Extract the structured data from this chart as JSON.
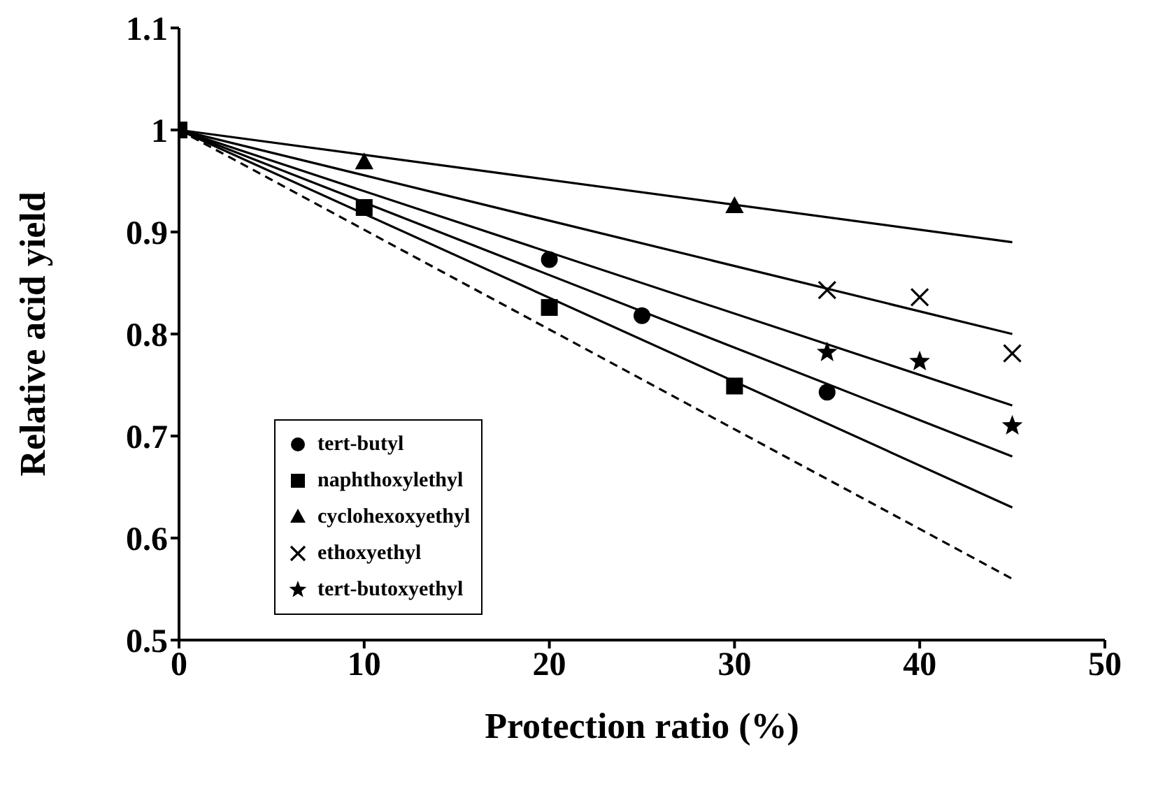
{
  "chart_data": {
    "type": "scatter",
    "xlabel": "Protection ratio (%)",
    "ylabel": "Relative acid yield",
    "xlim": [
      0,
      50
    ],
    "xticks": [
      0,
      10,
      20,
      30,
      40,
      50
    ],
    "ylim": [
      0.5,
      1.1
    ],
    "yticks": [
      0.5,
      0.6,
      0.7,
      0.8,
      0.9,
      1,
      1.1
    ],
    "grid": false,
    "legend": "bottom left",
    "series": [
      {
        "name": "tert-butyl",
        "type": "scatter",
        "marker": "circle",
        "color": "#000000",
        "x": [
          20,
          25,
          35
        ],
        "values": [
          0.873,
          0.818,
          0.743
        ]
      },
      {
        "name": "naphthoxylethyl",
        "type": "scatter",
        "marker": "square",
        "color": "#000000",
        "x": [
          0,
          10,
          20,
          30
        ],
        "values": [
          1,
          0.924,
          0.826,
          0.749
        ]
      },
      {
        "name": "cyclohexoxyethyl",
        "type": "scatter",
        "marker": "triangle",
        "color": "#000000",
        "x": [
          10,
          30
        ],
        "values": [
          0.968,
          0.925
        ]
      },
      {
        "name": "ethoxyethyl",
        "type": "scatter",
        "marker": "cross",
        "color": "#000000",
        "x": [
          35,
          40,
          45
        ],
        "values": [
          0.843,
          0.836,
          0.781
        ]
      },
      {
        "name": "tert-butoxyethyl",
        "type": "scatter",
        "marker": "star",
        "color": "#000000",
        "x": [
          35,
          40,
          45
        ],
        "values": [
          0.782,
          0.773,
          0.71
        ]
      },
      {
        "type": "line",
        "color": "#000000",
        "line_style": "solid",
        "x": [
          0,
          45
        ],
        "values": [
          1,
          0.89
        ]
      },
      {
        "type": "line",
        "color": "#000000",
        "line_style": "solid",
        "x": [
          0,
          45
        ],
        "values": [
          1,
          0.8
        ]
      },
      {
        "type": "line",
        "color": "#000000",
        "line_style": "solid",
        "x": [
          0,
          45
        ],
        "values": [
          1,
          0.73
        ]
      },
      {
        "type": "line",
        "color": "#000000",
        "line_style": "solid",
        "x": [
          0,
          45
        ],
        "values": [
          1,
          0.68
        ]
      },
      {
        "type": "line",
        "color": "#000000",
        "line_style": "solid",
        "x": [
          0,
          45
        ],
        "values": [
          1,
          0.63
        ]
      },
      {
        "type": "line",
        "color": "#000000",
        "line_style": "dashed",
        "x": [
          0,
          45
        ],
        "values": [
          1,
          0.56
        ]
      }
    ]
  }
}
